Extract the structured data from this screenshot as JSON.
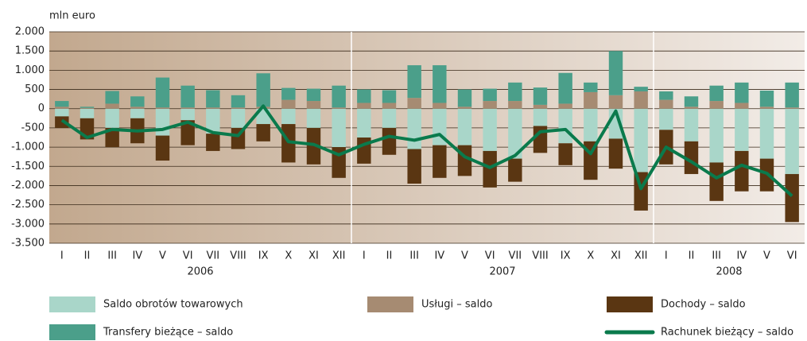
{
  "chart_data": {
    "type": "bar",
    "stacked": true,
    "y_label": "mln euro",
    "groups": [
      {
        "label": "2006",
        "categories": [
          "I",
          "II",
          "III",
          "IV",
          "V",
          "VI",
          "VII",
          "VIII",
          "IX",
          "X",
          "XI",
          "XII"
        ]
      },
      {
        "label": "2007",
        "categories": [
          "I",
          "II",
          "III",
          "IV",
          "V",
          "VI",
          "VII",
          "VIII",
          "IX",
          "X",
          "XI",
          "XII"
        ]
      },
      {
        "label": "2008",
        "categories": [
          "I",
          "II",
          "III",
          "IV",
          "V",
          "VI"
        ]
      }
    ],
    "ylim": [
      -3500,
      2000
    ],
    "yticks": [
      {
        "value": 2000,
        "label": "2.000"
      },
      {
        "value": 1500,
        "label": "1.500"
      },
      {
        "value": 1000,
        "label": "1.000"
      },
      500,
      0,
      -500,
      {
        "value": -1000,
        "label": "-1.000"
      },
      {
        "value": -1500,
        "label": "-1.500"
      },
      {
        "value": -2000,
        "label": "-2.000"
      },
      {
        "value": -2500,
        "label": "-2.500"
      },
      {
        "value": -3000,
        "label": "-3.000"
      },
      {
        "value": -3500,
        "label": "-3.500"
      }
    ],
    "grid": true,
    "legend": "bottom",
    "series": [
      {
        "name": "Saldo obrotów towarowych",
        "type": "bar",
        "color": "#a9d6c9",
        "values": [
          -200,
          -250,
          -500,
          -250,
          -700,
          -300,
          -650,
          -500,
          -400,
          -400,
          -500,
          -1000,
          -750,
          -500,
          -1050,
          -950,
          -950,
          -1100,
          -1300,
          -450,
          -900,
          -850,
          -780,
          -1650,
          -550,
          -850,
          -1400,
          -1100,
          -1300,
          -1700
        ]
      },
      {
        "name": "Usługi – saldo",
        "type": "bar",
        "color": "#a68b72",
        "values": [
          50,
          20,
          130,
          50,
          30,
          30,
          30,
          30,
          50,
          230,
          200,
          30,
          150,
          150,
          280,
          150,
          50,
          200,
          200,
          100,
          130,
          430,
          350,
          450,
          230,
          50,
          200,
          150,
          50,
          30
        ]
      },
      {
        "name": "Dochody – saldo",
        "type": "bar",
        "color": "#5a3612",
        "values": [
          -300,
          -550,
          -500,
          -650,
          -650,
          -650,
          -450,
          -550,
          -450,
          -1000,
          -950,
          -800,
          -680,
          -700,
          -900,
          -850,
          -800,
          -950,
          -600,
          -700,
          -570,
          -1000,
          -780,
          -1000,
          -900,
          -850,
          -1000,
          -1050,
          -850,
          -1250
        ]
      },
      {
        "name": "Transfery bieżące – saldo",
        "type": "bar",
        "color": "#4b9f8a",
        "values": [
          150,
          30,
          330,
          270,
          780,
          570,
          450,
          320,
          870,
          310,
          320,
          570,
          350,
          330,
          850,
          980,
          450,
          320,
          480,
          450,
          800,
          250,
          1150,
          120,
          220,
          270,
          400,
          530,
          420,
          650
        ]
      },
      {
        "name": "Rachunek bieżący – saldo",
        "type": "line",
        "color": "#0a7a4c",
        "values": [
          -300,
          -750,
          -540,
          -580,
          -540,
          -350,
          -620,
          -700,
          70,
          -860,
          -930,
          -1200,
          -930,
          -720,
          -820,
          -670,
          -1250,
          -1530,
          -1220,
          -600,
          -540,
          -1170,
          -60,
          -2080,
          -1000,
          -1380,
          -1800,
          -1470,
          -1680,
          -2270
        ]
      }
    ]
  }
}
